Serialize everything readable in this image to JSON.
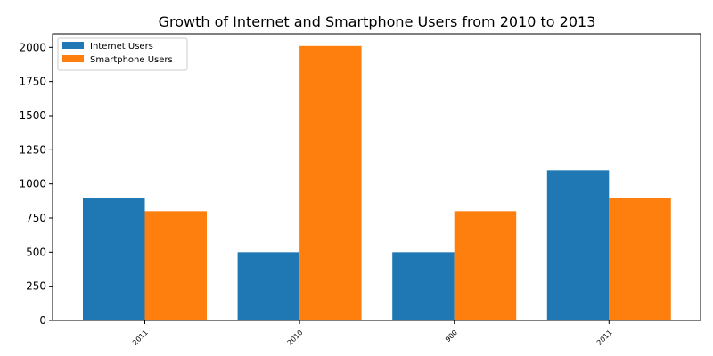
{
  "chart_data": {
    "type": "bar",
    "title": "Growth of Internet and Smartphone Users from 2010 to 2013",
    "xlabel": "",
    "ylabel": "",
    "categories": [
      "2011",
      "2010",
      "900",
      "2011"
    ],
    "series": [
      {
        "name": "Internet Users",
        "values": [
          900,
          500,
          500,
          1100
        ],
        "color": "#1f77b4"
      },
      {
        "name": "Smartphone Users",
        "values": [
          800,
          2010,
          800,
          900
        ],
        "color": "#ff7f0e"
      }
    ],
    "ylim": [
      0,
      2100
    ],
    "yticks": [
      0,
      250,
      500,
      750,
      1000,
      1250,
      1500,
      1750,
      2000
    ],
    "grid": false,
    "legend_position": "top-left"
  }
}
